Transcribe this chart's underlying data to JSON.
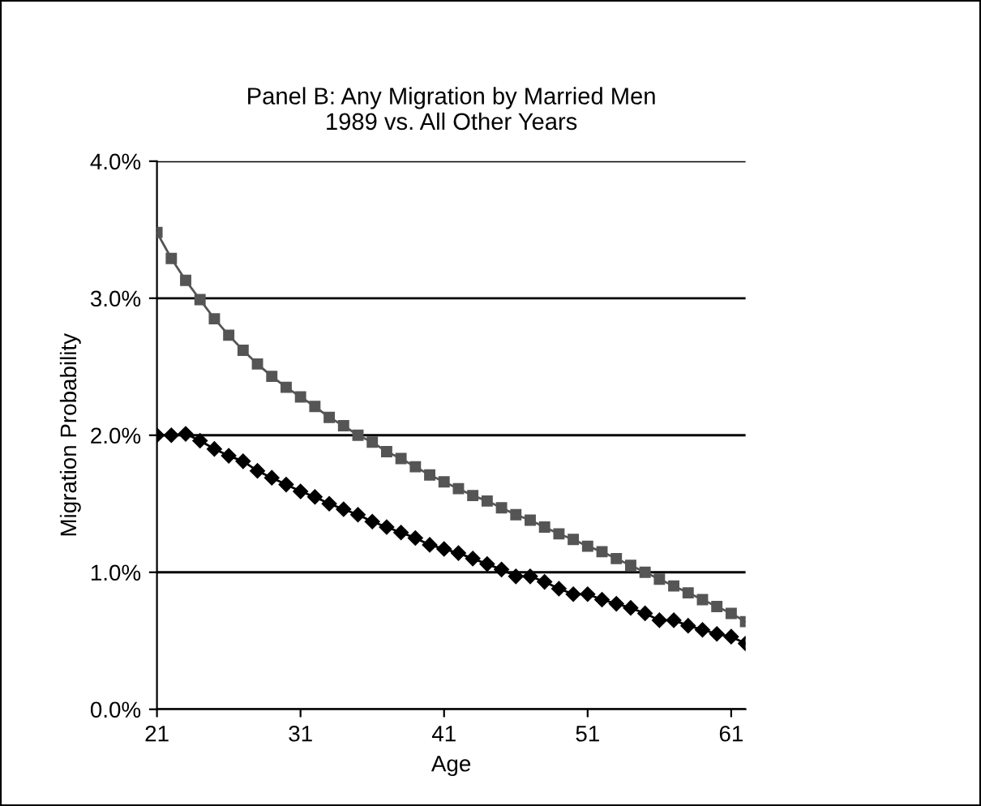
{
  "chart_data": {
    "type": "line",
    "title": "Panel B: Any Migration by Married Men\n1989 vs. All Other Years",
    "xlabel": "Age",
    "ylabel": "Migration Probability",
    "x": [
      21,
      22,
      23,
      24,
      25,
      26,
      27,
      28,
      29,
      30,
      31,
      32,
      33,
      34,
      35,
      36,
      37,
      38,
      39,
      40,
      41,
      42,
      43,
      44,
      45,
      46,
      47,
      48,
      49,
      50,
      51,
      52,
      53,
      54,
      55,
      56,
      57,
      58,
      59,
      60,
      61,
      62
    ],
    "series": [
      {
        "color": "#555555",
        "marker": "square",
        "values": [
          3.48,
          3.29,
          3.13,
          2.99,
          2.85,
          2.73,
          2.62,
          2.52,
          2.43,
          2.35,
          2.28,
          2.21,
          2.13,
          2.07,
          2.0,
          1.95,
          1.88,
          1.83,
          1.77,
          1.71,
          1.66,
          1.61,
          1.56,
          1.52,
          1.47,
          1.42,
          1.38,
          1.33,
          1.28,
          1.24,
          1.19,
          1.15,
          1.1,
          1.05,
          1.0,
          0.95,
          0.9,
          0.85,
          0.8,
          0.75,
          0.7,
          0.64
        ]
      },
      {
        "color": "#000000",
        "marker": "diamond",
        "values": [
          2.0,
          2.0,
          2.01,
          1.96,
          1.9,
          1.85,
          1.81,
          1.74,
          1.69,
          1.64,
          1.59,
          1.55,
          1.5,
          1.46,
          1.42,
          1.37,
          1.33,
          1.29,
          1.25,
          1.2,
          1.17,
          1.14,
          1.1,
          1.06,
          1.02,
          0.97,
          0.97,
          0.93,
          0.88,
          0.84,
          0.84,
          0.8,
          0.77,
          0.74,
          0.7,
          0.65,
          0.65,
          0.61,
          0.58,
          0.55,
          0.53,
          0.48
        ]
      }
    ],
    "xlim": [
      21,
      62
    ],
    "xticks": [
      21,
      31,
      41,
      51,
      61
    ],
    "ylim": [
      0,
      4
    ],
    "yticks": [
      {
        "value": 0,
        "label": "0.0%"
      },
      {
        "value": 1,
        "label": "1.0%"
      },
      {
        "value": 2,
        "label": "2.0%"
      },
      {
        "value": 3,
        "label": "3.0%"
      },
      {
        "value": 4,
        "label": "4.0%"
      }
    ],
    "grid": "y",
    "line_style": "solid"
  }
}
